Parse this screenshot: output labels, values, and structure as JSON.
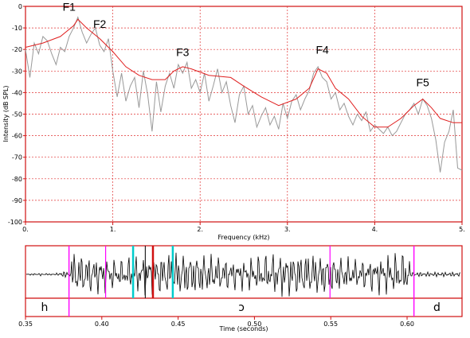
{
  "chart_data": [
    {
      "type": "line",
      "title": "",
      "xlabel": "Frequency (kHz)",
      "ylabel": "Intensity (dB SPL)",
      "xlim": [
        0,
        5
      ],
      "ylim": [
        -100,
        0
      ],
      "x_ticks": [
        "0.",
        "1.",
        "2.",
        "3.",
        "4.",
        "5."
      ],
      "y_ticks": [
        "0",
        "-10",
        "-20",
        "-30",
        "-40",
        "-50",
        "-60",
        "-70",
        "-80",
        "-90",
        "-100"
      ],
      "grid": true,
      "series": [
        {
          "color": "#999999",
          "points": [
            [
              0.0,
              -20
            ],
            [
              0.05,
              -33
            ],
            [
              0.1,
              -17
            ],
            [
              0.15,
              -22
            ],
            [
              0.2,
              -14
            ],
            [
              0.25,
              -16
            ],
            [
              0.3,
              -22
            ],
            [
              0.35,
              -27
            ],
            [
              0.4,
              -19
            ],
            [
              0.45,
              -21
            ],
            [
              0.5,
              -14
            ],
            [
              0.55,
              -10
            ],
            [
              0.6,
              -5
            ],
            [
              0.65,
              -12
            ],
            [
              0.7,
              -17
            ],
            [
              0.75,
              -13
            ],
            [
              0.8,
              -10
            ],
            [
              0.85,
              -18
            ],
            [
              0.9,
              -21
            ],
            [
              0.95,
              -15
            ],
            [
              1.0,
              -30
            ],
            [
              1.05,
              -42
            ],
            [
              1.1,
              -31
            ],
            [
              1.15,
              -44
            ],
            [
              1.2,
              -37
            ],
            [
              1.25,
              -33
            ],
            [
              1.3,
              -47
            ],
            [
              1.35,
              -30
            ],
            [
              1.4,
              -41
            ],
            [
              1.45,
              -58
            ],
            [
              1.5,
              -35
            ],
            [
              1.55,
              -49
            ],
            [
              1.6,
              -37
            ],
            [
              1.65,
              -31
            ],
            [
              1.7,
              -38
            ],
            [
              1.75,
              -27
            ],
            [
              1.8,
              -31
            ],
            [
              1.85,
              -26
            ],
            [
              1.9,
              -38
            ],
            [
              1.95,
              -34
            ],
            [
              2.0,
              -40
            ],
            [
              2.05,
              -31
            ],
            [
              2.1,
              -44
            ],
            [
              2.15,
              -37
            ],
            [
              2.2,
              -29
            ],
            [
              2.25,
              -40
            ],
            [
              2.3,
              -35
            ],
            [
              2.35,
              -46
            ],
            [
              2.4,
              -54
            ],
            [
              2.45,
              -41
            ],
            [
              2.5,
              -37
            ],
            [
              2.55,
              -50
            ],
            [
              2.6,
              -46
            ],
            [
              2.65,
              -56
            ],
            [
              2.7,
              -51
            ],
            [
              2.75,
              -47
            ],
            [
              2.8,
              -55
            ],
            [
              2.85,
              -51
            ],
            [
              2.9,
              -57
            ],
            [
              2.95,
              -45
            ],
            [
              3.0,
              -52
            ],
            [
              3.05,
              -44
            ],
            [
              3.1,
              -41
            ],
            [
              3.15,
              -48
            ],
            [
              3.2,
              -43
            ],
            [
              3.25,
              -39
            ],
            [
              3.3,
              -31
            ],
            [
              3.35,
              -28
            ],
            [
              3.4,
              -33
            ],
            [
              3.45,
              -35
            ],
            [
              3.5,
              -43
            ],
            [
              3.55,
              -40
            ],
            [
              3.6,
              -48
            ],
            [
              3.65,
              -45
            ],
            [
              3.7,
              -51
            ],
            [
              3.75,
              -55
            ],
            [
              3.8,
              -50
            ],
            [
              3.85,
              -53
            ],
            [
              3.9,
              -49
            ],
            [
              3.95,
              -58
            ],
            [
              4.0,
              -55
            ],
            [
              4.05,
              -57
            ],
            [
              4.1,
              -59
            ],
            [
              4.15,
              -56
            ],
            [
              4.2,
              -60
            ],
            [
              4.25,
              -58
            ],
            [
              4.3,
              -54
            ],
            [
              4.35,
              -50
            ],
            [
              4.4,
              -48
            ],
            [
              4.45,
              -45
            ],
            [
              4.5,
              -50
            ],
            [
              4.55,
              -43
            ],
            [
              4.6,
              -46
            ],
            [
              4.65,
              -52
            ],
            [
              4.7,
              -62
            ],
            [
              4.75,
              -77
            ],
            [
              4.8,
              -63
            ],
            [
              4.85,
              -58
            ],
            [
              4.9,
              -48
            ],
            [
              4.95,
              -75
            ],
            [
              5.0,
              -76
            ]
          ]
        },
        {
          "color": "#e02020",
          "points": [
            [
              0.0,
              -19
            ],
            [
              0.2,
              -17
            ],
            [
              0.4,
              -14
            ],
            [
              0.55,
              -9
            ],
            [
              0.6,
              -6
            ],
            [
              0.7,
              -10
            ],
            [
              0.85,
              -15
            ],
            [
              1.0,
              -21
            ],
            [
              1.15,
              -28
            ],
            [
              1.3,
              -32
            ],
            [
              1.45,
              -34
            ],
            [
              1.6,
              -34
            ],
            [
              1.7,
              -30
            ],
            [
              1.8,
              -28
            ],
            [
              1.9,
              -29
            ],
            [
              2.1,
              -32
            ],
            [
              2.35,
              -33
            ],
            [
              2.5,
              -37
            ],
            [
              2.7,
              -42
            ],
            [
              2.9,
              -46
            ],
            [
              3.1,
              -43
            ],
            [
              3.25,
              -38
            ],
            [
              3.35,
              -29
            ],
            [
              3.45,
              -31
            ],
            [
              3.55,
              -38
            ],
            [
              3.7,
              -43
            ],
            [
              3.85,
              -51
            ],
            [
              4.0,
              -56
            ],
            [
              4.15,
              -56
            ],
            [
              4.3,
              -52
            ],
            [
              4.45,
              -46
            ],
            [
              4.55,
              -43
            ],
            [
              4.65,
              -47
            ],
            [
              4.75,
              -52
            ],
            [
              4.9,
              -54
            ],
            [
              5.0,
              -54
            ]
          ]
        }
      ],
      "annotations": [
        {
          "text": "F1",
          "x": 0.5,
          "y": -2
        },
        {
          "text": "F2",
          "x": 0.85,
          "y": -10
        },
        {
          "text": "F3",
          "x": 1.8,
          "y": -23
        },
        {
          "text": "F4",
          "x": 3.4,
          "y": -22
        },
        {
          "text": "F5",
          "x": 4.55,
          "y": -37
        }
      ]
    },
    {
      "type": "line",
      "xlabel": "Time (seconds)",
      "xlim": [
        0.35,
        0.636
      ],
      "x_ticks": [
        "0.35",
        "0.40",
        "0.45",
        "0.50",
        "0.55",
        "0.60"
      ],
      "x_tick_values": [
        0.35,
        0.4,
        0.45,
        0.5,
        0.55,
        0.6
      ],
      "segment_boundaries": [
        0.3785,
        0.6045
      ],
      "segment_labels": [
        {
          "text": "h",
          "x": 0.3625
        },
        {
          "text": "ɔ",
          "x": 0.4915
        },
        {
          "text": "d",
          "x": 0.6195
        }
      ],
      "markers": [
        {
          "x": 0.4025,
          "color": "#ff00ff"
        },
        {
          "x": 0.4205,
          "color": "#00cccc"
        },
        {
          "x": 0.4285,
          "color": "#222222"
        },
        {
          "x": 0.4335,
          "color": "#d01010"
        },
        {
          "x": 0.4465,
          "color": "#00cccc"
        },
        {
          "x": 0.5495,
          "color": "#ff00ff"
        }
      ]
    }
  ]
}
